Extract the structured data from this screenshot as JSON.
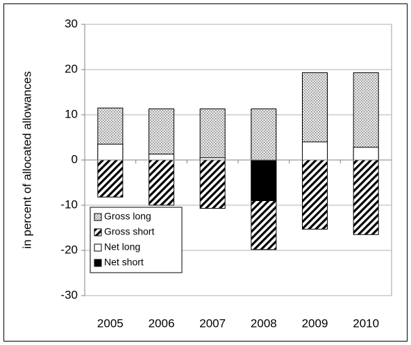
{
  "chart_data": {
    "type": "bar",
    "mode": "overlap",
    "y_label": "in percent of allocated allowances",
    "categories": [
      "2005",
      "2006",
      "2007",
      "2008",
      "2009",
      "2010"
    ],
    "series": [
      {
        "name": "Gross long",
        "color": "#000000",
        "pattern": "dots",
        "values": [
          11.5,
          11.3,
          11.3,
          11.3,
          19.3,
          19.3
        ]
      },
      {
        "name": "Gross short",
        "color": "#000000",
        "pattern": "hatch",
        "values": [
          -8.2,
          -10,
          -10.7,
          -19.8,
          -15.3,
          -16.5
        ]
      },
      {
        "name": "Net long",
        "color": "#ffffff",
        "pattern": "solid",
        "values": [
          3.5,
          1.3,
          0.5,
          null,
          4,
          2.8
        ]
      },
      {
        "name": "Net short",
        "color": "#000000",
        "pattern": "solid",
        "values": [
          null,
          null,
          null,
          -9,
          null,
          null
        ]
      }
    ],
    "ylim": [
      -30,
      30
    ],
    "yticks": [
      -30,
      -20,
      -10,
      0,
      10,
      20,
      30
    ],
    "grid": true,
    "legend": "lower-left"
  }
}
